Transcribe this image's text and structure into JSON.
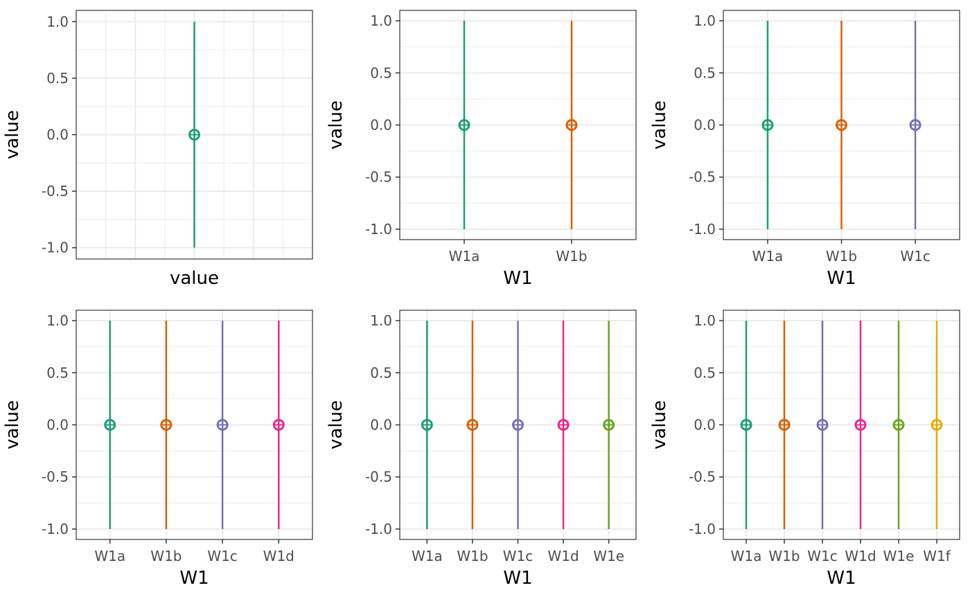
{
  "chart_data": [
    {
      "type": "errorbar",
      "xlabel": "value",
      "ylabel": "value",
      "ylim": [
        -1.1,
        1.1
      ],
      "yticks": [
        "1.0",
        "0.5",
        "0.0",
        "-0.5",
        "-1.0"
      ],
      "ytick_values": [
        1.0,
        0.5,
        0.0,
        -0.5,
        -1.0
      ],
      "categories": [
        ""
      ],
      "show_x_tick_labels": false,
      "points": [
        {
          "category": "",
          "y": 0.0,
          "ymin": -1.0,
          "ymax": 1.0,
          "color": "#1b9e77"
        }
      ]
    },
    {
      "type": "errorbar",
      "xlabel": "W1",
      "ylabel": "value",
      "ylim": [
        -1.1,
        1.1
      ],
      "yticks": [
        "1.0",
        "0.5",
        "0.0",
        "-0.5",
        "-1.0"
      ],
      "ytick_values": [
        1.0,
        0.5,
        0.0,
        -0.5,
        -1.0
      ],
      "categories": [
        "W1a",
        "W1b"
      ],
      "show_x_tick_labels": true,
      "points": [
        {
          "category": "W1a",
          "y": 0.0,
          "ymin": -1.0,
          "ymax": 1.0,
          "color": "#1b9e77"
        },
        {
          "category": "W1b",
          "y": 0.0,
          "ymin": -1.0,
          "ymax": 1.0,
          "color": "#d95f02"
        }
      ]
    },
    {
      "type": "errorbar",
      "xlabel": "W1",
      "ylabel": "value",
      "ylim": [
        -1.1,
        1.1
      ],
      "yticks": [
        "1.0",
        "0.5",
        "0.0",
        "-0.5",
        "-1.0"
      ],
      "ytick_values": [
        1.0,
        0.5,
        0.0,
        -0.5,
        -1.0
      ],
      "categories": [
        "W1a",
        "W1b",
        "W1c"
      ],
      "show_x_tick_labels": true,
      "points": [
        {
          "category": "W1a",
          "y": 0.0,
          "ymin": -1.0,
          "ymax": 1.0,
          "color": "#1b9e77"
        },
        {
          "category": "W1b",
          "y": 0.0,
          "ymin": -1.0,
          "ymax": 1.0,
          "color": "#d95f02"
        },
        {
          "category": "W1c",
          "y": 0.0,
          "ymin": -1.0,
          "ymax": 1.0,
          "color": "#7570b3"
        }
      ]
    },
    {
      "type": "errorbar",
      "xlabel": "W1",
      "ylabel": "value",
      "ylim": [
        -1.1,
        1.1
      ],
      "yticks": [
        "1.0",
        "0.5",
        "0.0",
        "-0.5",
        "-1.0"
      ],
      "ytick_values": [
        1.0,
        0.5,
        0.0,
        -0.5,
        -1.0
      ],
      "categories": [
        "W1a",
        "W1b",
        "W1c",
        "W1d"
      ],
      "show_x_tick_labels": true,
      "points": [
        {
          "category": "W1a",
          "y": 0.0,
          "ymin": -1.0,
          "ymax": 1.0,
          "color": "#1b9e77"
        },
        {
          "category": "W1b",
          "y": 0.0,
          "ymin": -1.0,
          "ymax": 1.0,
          "color": "#d95f02"
        },
        {
          "category": "W1c",
          "y": 0.0,
          "ymin": -1.0,
          "ymax": 1.0,
          "color": "#7570b3"
        },
        {
          "category": "W1d",
          "y": 0.0,
          "ymin": -1.0,
          "ymax": 1.0,
          "color": "#e7298a"
        }
      ]
    },
    {
      "type": "errorbar",
      "xlabel": "W1",
      "ylabel": "value",
      "ylim": [
        -1.1,
        1.1
      ],
      "yticks": [
        "1.0",
        "0.5",
        "0.0",
        "-0.5",
        "-1.0"
      ],
      "ytick_values": [
        1.0,
        0.5,
        0.0,
        -0.5,
        -1.0
      ],
      "categories": [
        "W1a",
        "W1b",
        "W1c",
        "W1d",
        "W1e"
      ],
      "show_x_tick_labels": true,
      "points": [
        {
          "category": "W1a",
          "y": 0.0,
          "ymin": -1.0,
          "ymax": 1.0,
          "color": "#1b9e77"
        },
        {
          "category": "W1b",
          "y": 0.0,
          "ymin": -1.0,
          "ymax": 1.0,
          "color": "#d95f02"
        },
        {
          "category": "W1c",
          "y": 0.0,
          "ymin": -1.0,
          "ymax": 1.0,
          "color": "#7570b3"
        },
        {
          "category": "W1d",
          "y": 0.0,
          "ymin": -1.0,
          "ymax": 1.0,
          "color": "#e7298a"
        },
        {
          "category": "W1e",
          "y": 0.0,
          "ymin": -1.0,
          "ymax": 1.0,
          "color": "#66a61e"
        }
      ]
    },
    {
      "type": "errorbar",
      "xlabel": "W1",
      "ylabel": "value",
      "ylim": [
        -1.1,
        1.1
      ],
      "yticks": [
        "1.0",
        "0.5",
        "0.0",
        "-0.5",
        "-1.0"
      ],
      "ytick_values": [
        1.0,
        0.5,
        0.0,
        -0.5,
        -1.0
      ],
      "categories": [
        "W1a",
        "W1b",
        "W1c",
        "W1d",
        "W1e",
        "W1f"
      ],
      "show_x_tick_labels": true,
      "points": [
        {
          "category": "W1a",
          "y": 0.0,
          "ymin": -1.0,
          "ymax": 1.0,
          "color": "#1b9e77"
        },
        {
          "category": "W1b",
          "y": 0.0,
          "ymin": -1.0,
          "ymax": 1.0,
          "color": "#d95f02"
        },
        {
          "category": "W1c",
          "y": 0.0,
          "ymin": -1.0,
          "ymax": 1.0,
          "color": "#7570b3"
        },
        {
          "category": "W1d",
          "y": 0.0,
          "ymin": -1.0,
          "ymax": 1.0,
          "color": "#e7298a"
        },
        {
          "category": "W1e",
          "y": 0.0,
          "ymin": -1.0,
          "ymax": 1.0,
          "color": "#66a61e"
        },
        {
          "category": "W1f",
          "y": 0.0,
          "ymin": -1.0,
          "ymax": 1.0,
          "color": "#e6ab02"
        }
      ]
    }
  ]
}
